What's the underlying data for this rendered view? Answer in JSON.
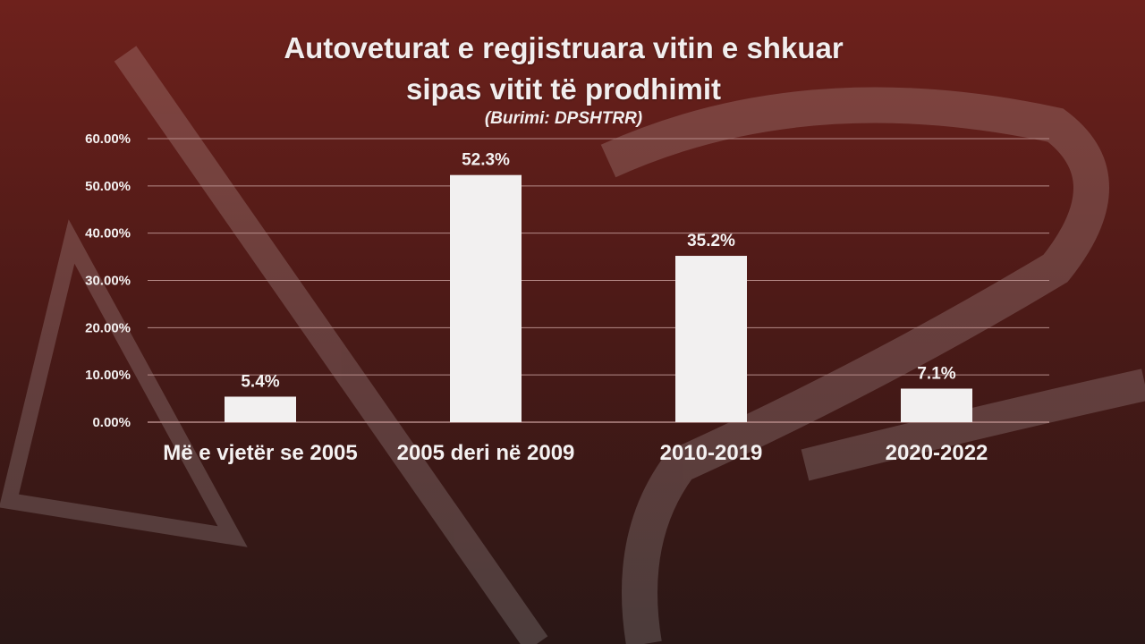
{
  "header": {
    "title_line_1": "Autoveturat e regjistruara vitin e shkuar",
    "title_line_2": "sipas vitit të prodhimit",
    "subtitle": "(Burimi: DPSHTRR)"
  },
  "colors": {
    "bar": "#f2f0f0",
    "grid": "#b58a88",
    "text": "#f4f1f1"
  },
  "chart_data": {
    "type": "bar",
    "title": "Autoveturat e regjistruara vitin e shkuar sipas vitit të prodhimit",
    "subtitle": "(Burimi: DPSHTRR)",
    "categories": [
      "Më e vjetër se 2005",
      "2005 deri në 2009",
      "2010-2019",
      "2020-2022"
    ],
    "values": [
      5.4,
      52.3,
      35.2,
      7.1
    ],
    "value_labels": [
      "5.4%",
      "52.3%",
      "35.2%",
      "7.1%"
    ],
    "ylim": [
      0,
      60
    ],
    "yticks": [
      0,
      10,
      20,
      30,
      40,
      50,
      60
    ],
    "ytick_labels": [
      "0.00%",
      "10.00%",
      "20.00%",
      "30.00%",
      "40.00%",
      "50.00%",
      "60.00%"
    ],
    "xlabel": "",
    "ylabel": "",
    "grid": true,
    "legend": "none"
  }
}
